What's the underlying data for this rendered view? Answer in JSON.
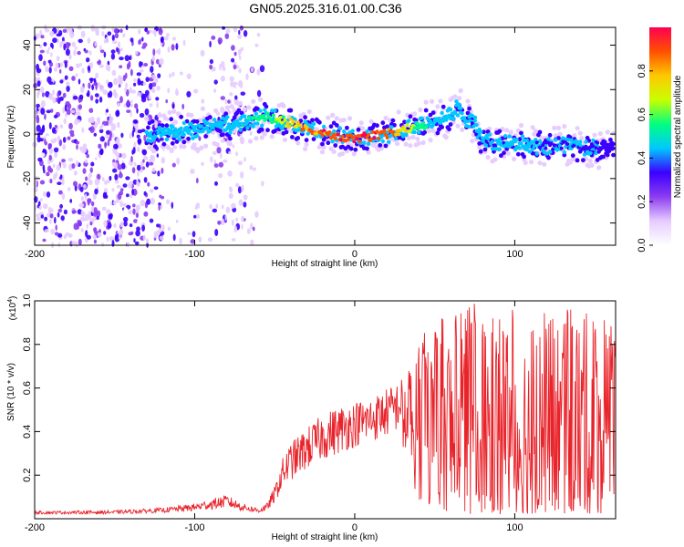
{
  "title": "GN05.2025.316.01.00.C36",
  "chart_data": [
    {
      "type": "heatmap",
      "name": "spectrogram",
      "xlabel": "Height of straight line (km)",
      "ylabel": "Frequency (Hz)",
      "xlim": [
        -200,
        163
      ],
      "ylim": [
        -50,
        48
      ],
      "xticks": [
        -200,
        -100,
        0,
        100
      ],
      "yticks": [
        -40,
        -20,
        0,
        20,
        40
      ],
      "colorbar": {
        "label": "Normalized spectral amplitude",
        "range": [
          0.0,
          1.0
        ],
        "ticks": [
          0.0,
          0.2,
          0.4,
          0.6,
          0.8
        ],
        "colors": [
          "#ffffff",
          "#e6ccff",
          "#8c3cf0",
          "#3c00ff",
          "#00c8ff",
          "#00ff80",
          "#c8ff00",
          "#ffc800",
          "#ff5000",
          "#ff0050"
        ]
      },
      "ridge": {
        "x": [
          -130,
          -120,
          -100,
          -90,
          -80,
          -70,
          -60,
          -55,
          -50,
          -40,
          -30,
          -20,
          -10,
          0,
          10,
          20,
          30,
          40,
          50,
          60,
          65,
          70,
          75,
          80,
          90,
          100,
          110,
          120,
          130,
          140,
          150,
          160
        ],
        "y": [
          0,
          1,
          2,
          3,
          4,
          5,
          7,
          8,
          7,
          5,
          2,
          0,
          -1,
          -2,
          -1,
          0,
          2,
          4,
          6,
          8,
          12,
          6,
          5,
          -4,
          -4,
          -4,
          -5,
          -5,
          -5,
          -6,
          -6,
          -6
        ],
        "peak_amplitude": [
          0.45,
          0.45,
          0.5,
          0.45,
          0.5,
          0.5,
          0.6,
          0.6,
          0.6,
          0.8,
          0.9,
          0.95,
          1.0,
          1.0,
          1.0,
          0.95,
          0.8,
          0.6,
          0.5,
          0.5,
          0.5,
          0.45,
          0.45,
          0.4,
          0.45,
          0.45,
          0.45,
          0.4,
          0.4,
          0.4,
          0.4,
          0.35
        ]
      },
      "noise_region_x": [
        -200,
        -55
      ]
    },
    {
      "type": "line",
      "name": "snr",
      "xlabel": "Height of straight line (km)",
      "ylabel": "SNR (10 * v/v)",
      "y_scale_label": "(x10",
      "y_scale_exponent": "4",
      "xlim": [
        -200,
        163
      ],
      "ylim": [
        0,
        10000
      ],
      "xticks": [
        -200,
        -100,
        0,
        100
      ],
      "yticks": [
        2000,
        4000,
        6000,
        8000,
        10000
      ],
      "ytick_labels": [
        "0.2",
        "0.4",
        "0.6",
        "0.8",
        "1.0"
      ],
      "color": "#e8232a",
      "envelope": {
        "x": [
          -200,
          -150,
          -120,
          -100,
          -90,
          -80,
          -70,
          -60,
          -55,
          -50,
          -45,
          -40,
          -30,
          -20,
          -10,
          0,
          10,
          20,
          25,
          30,
          35,
          40,
          50,
          60,
          70,
          75,
          80,
          90,
          100,
          110,
          120,
          130,
          140,
          150,
          160,
          163
        ],
        "y_max": [
          350,
          380,
          500,
          700,
          900,
          1100,
          700,
          500,
          700,
          1500,
          2800,
          3500,
          4200,
          4800,
          5200,
          5400,
          5600,
          6000,
          6200,
          6500,
          7500,
          8500,
          9000,
          9500,
          9800,
          10000,
          9600,
          9400,
          9800,
          9200,
          9600,
          9800,
          9400,
          9600,
          9000,
          8000
        ],
        "y_min": [
          150,
          150,
          180,
          200,
          220,
          250,
          200,
          150,
          200,
          400,
          800,
          1000,
          1400,
          1800,
          2000,
          2400,
          2600,
          2800,
          3000,
          3200,
          2000,
          800,
          500,
          300,
          200,
          200,
          300,
          200,
          300,
          200,
          300,
          200,
          300,
          200,
          300,
          300
        ]
      }
    }
  ]
}
